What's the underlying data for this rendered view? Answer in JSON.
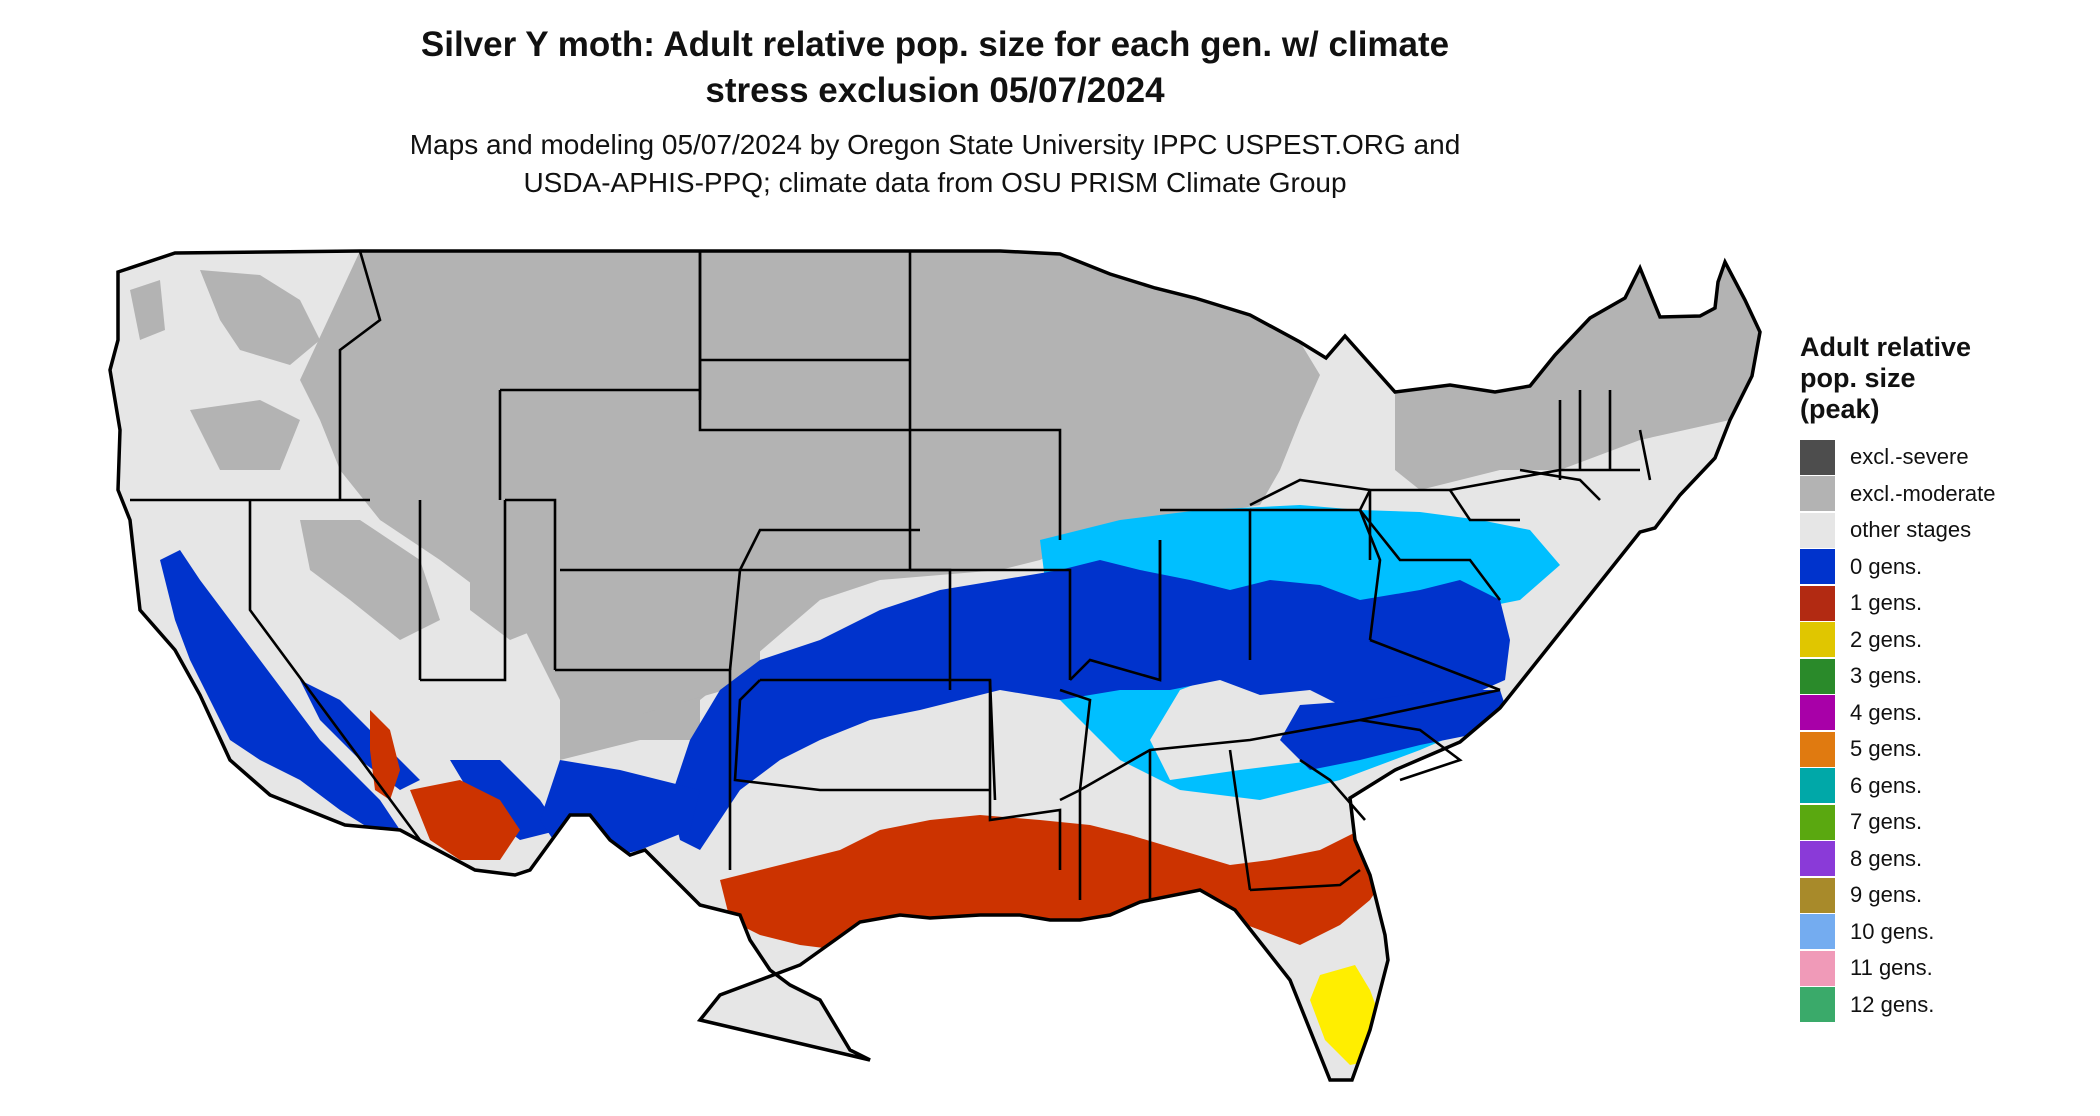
{
  "title_line1": "Silver Y moth: Adult relative pop. size for each gen. w/ climate",
  "title_line2": "stress exclusion 05/07/2024",
  "subtitle_line1": "Maps and modeling 05/07/2024 by Oregon State University IPPC USPEST.ORG and",
  "subtitle_line2": "USDA-APHIS-PPQ; climate data from OSU PRISM Climate Group",
  "legend": {
    "title_line1": "Adult relative",
    "title_line2": "pop. size",
    "title_line3": "(peak)",
    "items": [
      {
        "label": "excl.-severe",
        "color": "#4d4d4d"
      },
      {
        "label": "excl.-moderate",
        "color": "#b3b3b3"
      },
      {
        "label": "other stages",
        "color": "#e6e6e6"
      },
      {
        "label": "0 gens.",
        "color": "#0033cc"
      },
      {
        "label": "1 gens.",
        "color": "#b22a12"
      },
      {
        "label": "2 gens.",
        "color": "#e0c600"
      },
      {
        "label": "3 gens.",
        "color": "#2a8a2a"
      },
      {
        "label": "4 gens.",
        "color": "#a800a8"
      },
      {
        "label": "5 gens.",
        "color": "#e07a10"
      },
      {
        "label": "6 gens.",
        "color": "#00a8a8"
      },
      {
        "label": "7 gens.",
        "color": "#5aa810"
      },
      {
        "label": "8 gens.",
        "color": "#8a3ad8"
      },
      {
        "label": "9 gens.",
        "color": "#a88a2a"
      },
      {
        "label": "10 gens.",
        "color": "#74acf0"
      },
      {
        "label": "11 gens.",
        "color": "#f09ab8"
      },
      {
        "label": "12 gens.",
        "color": "#3aaa6a"
      }
    ]
  },
  "map_colors": {
    "excluded_moderate": "#b3b3b3",
    "other_stages": "#e6e6e6",
    "light_blue": "#00bfff",
    "zero_gens": "#0033cc",
    "one_gen": "#cc3300",
    "two_gens": "#ffee00",
    "state_border": "#000000"
  }
}
